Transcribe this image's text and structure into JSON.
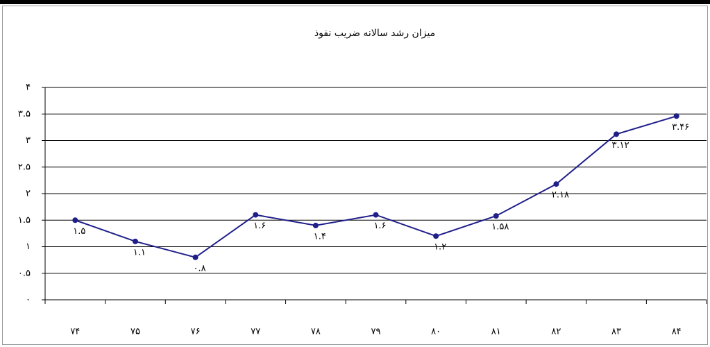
{
  "chart_data": {
    "type": "line",
    "title": "میزان رشد سالانه ضریب نفوذ",
    "categories": [
      "۷۴",
      "۷۵",
      "۷۶",
      "۷۷",
      "۷۸",
      "۷۹",
      "۸۰",
      "۸۱",
      "۸۲",
      "۸۳",
      "۸۴"
    ],
    "series": [
      {
        "name": "ضریب نفوذ",
        "color": "#1f1f8a",
        "values": [
          1.5,
          1.1,
          0.8,
          1.6,
          1.4,
          1.6,
          1.2,
          1.58,
          2.18,
          3.12,
          3.46
        ],
        "value_labels": [
          "۱.۵",
          "۱.۱",
          "۰.۸",
          "۱.۶",
          "۱.۴",
          "۱.۶",
          "۱.۲",
          "۱.۵۸",
          "۲.۱۸",
          "۳.۱۲",
          "۳.۴۶"
        ]
      }
    ],
    "ylim": [
      0,
      4
    ],
    "yticks": [
      {
        "value": 0,
        "label": "۰"
      },
      {
        "value": 0.5,
        "label": "۰.۵"
      },
      {
        "value": 1,
        "label": "۱"
      },
      {
        "value": 1.5,
        "label": "۱.۵"
      },
      {
        "value": 2,
        "label": "۲"
      },
      {
        "value": 2.5,
        "label": "۲.۵"
      },
      {
        "value": 3,
        "label": "۳"
      },
      {
        "value": 3.5,
        "label": "۳.۵"
      },
      {
        "value": 4,
        "label": "۴"
      }
    ],
    "grid": true
  }
}
